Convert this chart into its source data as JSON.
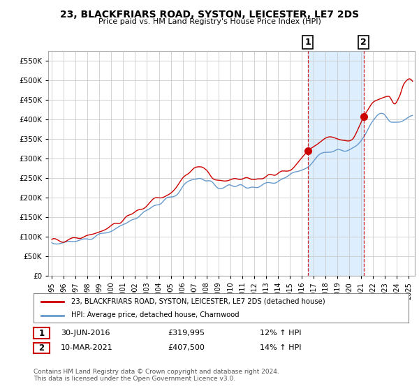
{
  "title": "23, BLACKFRIARS ROAD, SYSTON, LEICESTER, LE7 2DS",
  "subtitle": "Price paid vs. HM Land Registry's House Price Index (HPI)",
  "legend_line1": "23, BLACKFRIARS ROAD, SYSTON, LEICESTER, LE7 2DS (detached house)",
  "legend_line2": "HPI: Average price, detached house, Charnwood",
  "annotation1": {
    "label": "1",
    "date": "30-JUN-2016",
    "price": "£319,995",
    "hpi": "12% ↑ HPI",
    "x_year": 2016.5,
    "y_val": 319995
  },
  "annotation2": {
    "label": "2",
    "date": "10-MAR-2021",
    "price": "£407,500",
    "hpi": "14% ↑ HPI",
    "x_year": 2021.21,
    "y_val": 407500
  },
  "footer": "Contains HM Land Registry data © Crown copyright and database right 2024.\nThis data is licensed under the Open Government Licence v3.0.",
  "red_color": "#cc0000",
  "blue_color": "#6699cc",
  "shade_color": "#ddeeff",
  "background_color": "#ffffff",
  "grid_color": "#cccccc",
  "ylim": [
    0,
    575000
  ],
  "xlim_start": 1994.7,
  "xlim_end": 2025.5,
  "x_ticks": [
    1995,
    1996,
    1997,
    1998,
    1999,
    2000,
    2001,
    2002,
    2003,
    2004,
    2005,
    2006,
    2007,
    2008,
    2009,
    2010,
    2011,
    2012,
    2013,
    2014,
    2015,
    2016,
    2017,
    2018,
    2019,
    2020,
    2021,
    2022,
    2023,
    2024,
    2025
  ],
  "y_ticks": [
    0,
    50000,
    100000,
    150000,
    200000,
    250000,
    300000,
    350000,
    400000,
    450000,
    500000,
    550000
  ],
  "hpi_seed": 7,
  "noise_scale_hpi": 2500,
  "noise_scale_red": 3500
}
